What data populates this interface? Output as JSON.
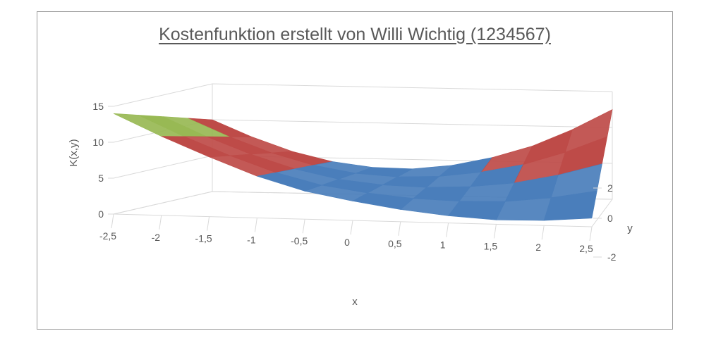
{
  "chart_data": {
    "type": "surface",
    "title": "Kostenfunktion erstellt von Willi Wichtig (1234567)",
    "xlabel": "x",
    "ylabel": "y",
    "zlabel": "K(x,y)",
    "x_ticks": [
      "-2,5",
      "-2",
      "-1,5",
      "-1",
      "-0,5",
      "0",
      "0,5",
      "1",
      "1,5",
      "2",
      "2,5"
    ],
    "y_ticks": [
      "2",
      "0",
      "-2"
    ],
    "z_ticks": [
      "0",
      "5",
      "10",
      "15"
    ],
    "xlim": [
      -2.5,
      2.5
    ],
    "ylim": [
      -2,
      2
    ],
    "zlim": [
      0,
      15
    ],
    "band_colors": {
      "0-5": "#4a7ebb",
      "5-10": "#be4b48",
      "10-15": "#98b954"
    },
    "surface_front_edge": [
      {
        "x": -2.5,
        "z": 14.0
      },
      {
        "x": -2.0,
        "z": 11.0
      },
      {
        "x": -1.5,
        "z": 8.3
      },
      {
        "x": -1.0,
        "z": 5.8
      },
      {
        "x": -0.5,
        "z": 3.9
      },
      {
        "x": 0.0,
        "z": 2.7
      },
      {
        "x": 0.5,
        "z": 1.7
      },
      {
        "x": 1.0,
        "z": 1.0
      },
      {
        "x": 1.5,
        "z": 0.6
      },
      {
        "x": 2.0,
        "z": 0.7
      },
      {
        "x": 2.5,
        "z": 1.2
      }
    ],
    "surface_back_edge": [
      {
        "x": -2.5,
        "z": 10.0
      },
      {
        "x": -2.0,
        "z": 7.7
      },
      {
        "x": -1.5,
        "z": 5.8
      },
      {
        "x": -1.0,
        "z": 4.5
      },
      {
        "x": -0.5,
        "z": 3.8
      },
      {
        "x": 0.0,
        "z": 3.7
      },
      {
        "x": 0.5,
        "z": 4.3
      },
      {
        "x": 1.0,
        "z": 5.5
      },
      {
        "x": 1.5,
        "z": 7.2
      },
      {
        "x": 2.0,
        "z": 9.6
      },
      {
        "x": 2.5,
        "z": 12.5
      }
    ]
  }
}
